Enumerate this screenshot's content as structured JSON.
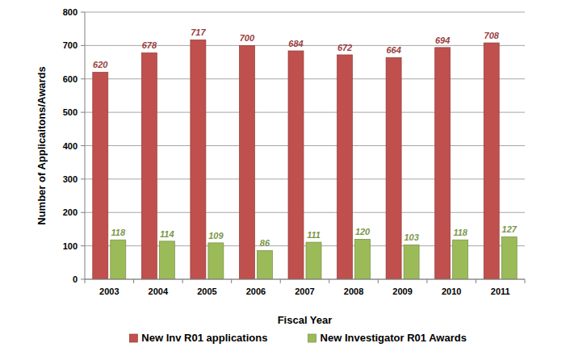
{
  "chart_data": {
    "type": "bar",
    "x_label": "Fiscal Year",
    "y_label": "Number of Applicaitons/Awards",
    "categories": [
      "2003",
      "2004",
      "2005",
      "2006",
      "2007",
      "2008",
      "2009",
      "2010",
      "2011"
    ],
    "series": [
      {
        "name": "New Inv R01 applications",
        "color": "#c0504d",
        "values": [
          620,
          678,
          717,
          700,
          684,
          672,
          664,
          694,
          708
        ]
      },
      {
        "name": "New Investigator R01 Awards",
        "color": "#9bbb59",
        "values": [
          118,
          114,
          109,
          86,
          111,
          120,
          103,
          118,
          127
        ]
      }
    ],
    "ylim": [
      0,
      800
    ],
    "yticks": [
      0,
      100,
      200,
      300,
      400,
      500,
      600,
      700,
      800
    ],
    "grid": true,
    "legend": "bottom",
    "data_labels": true
  }
}
